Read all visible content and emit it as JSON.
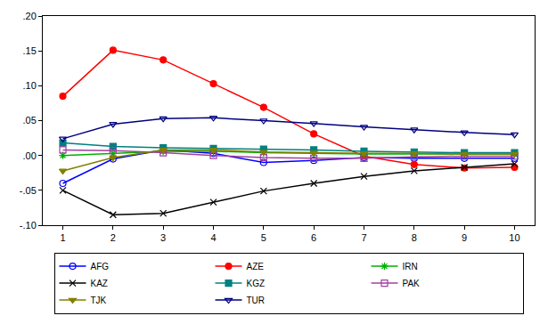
{
  "chart_data": {
    "type": "line",
    "x": [
      1,
      2,
      3,
      4,
      5,
      6,
      7,
      8,
      9,
      10
    ],
    "xlim": [
      0.6,
      10.4
    ],
    "xticks": [
      1,
      2,
      3,
      4,
      5,
      6,
      7,
      8,
      9,
      10
    ],
    "ylim": [
      -0.1,
      0.2
    ],
    "yticks": [
      {
        "value": -0.1,
        "label": "-.10"
      },
      {
        "value": -0.05,
        "label": "-.05"
      },
      {
        "value": 0.0,
        "label": ".00"
      },
      {
        "value": 0.05,
        "label": ".05"
      },
      {
        "value": 0.1,
        "label": ".10"
      },
      {
        "value": 0.15,
        "label": ".15"
      },
      {
        "value": 0.2,
        "label": ".20"
      }
    ],
    "grid": false,
    "legend": "bottom",
    "series": [
      {
        "name": "AFG",
        "color": "#0000ff",
        "marker": "circle-open",
        "values": [
          -0.04,
          -0.005,
          0.008,
          0.003,
          -0.01,
          -0.007,
          -0.003,
          -0.004,
          -0.004,
          -0.004
        ]
      },
      {
        "name": "AZE",
        "color": "#ff0000",
        "marker": "circle",
        "values": [
          0.085,
          0.151,
          0.137,
          0.103,
          0.069,
          0.031,
          -0.001,
          -0.013,
          -0.018,
          -0.017
        ]
      },
      {
        "name": "IRN",
        "color": "#00b000",
        "marker": "asterisk-open",
        "values": [
          0.0,
          0.003,
          0.006,
          0.006,
          0.004,
          0.003,
          0.002,
          0.002,
          0.002,
          0.002
        ]
      },
      {
        "name": "KAZ",
        "color": "#000000",
        "marker": "x-thin-open",
        "values": [
          -0.05,
          -0.085,
          -0.083,
          -0.067,
          -0.051,
          -0.04,
          -0.03,
          -0.022,
          -0.017,
          -0.012
        ]
      },
      {
        "name": "KGZ",
        "color": "#008080",
        "marker": "square",
        "values": [
          0.018,
          0.013,
          0.011,
          0.01,
          0.009,
          0.008,
          0.006,
          0.005,
          0.004,
          0.004
        ]
      },
      {
        "name": "PAK",
        "color": "#a040a0",
        "marker": "square-open",
        "values": [
          0.008,
          0.007,
          0.004,
          0.0,
          -0.003,
          -0.004,
          -0.004,
          -0.002,
          -0.001,
          -0.001
        ]
      },
      {
        "name": "TJK",
        "color": "#808000",
        "marker": "triangle-down",
        "values": [
          -0.022,
          -0.003,
          0.008,
          0.008,
          0.005,
          0.004,
          0.003,
          0.003,
          0.002,
          0.002
        ]
      },
      {
        "name": "TUR",
        "color": "#000080",
        "marker": "triangle-down-open",
        "values": [
          0.024,
          0.045,
          0.053,
          0.054,
          0.05,
          0.046,
          0.041,
          0.037,
          0.033,
          0.03
        ]
      }
    ]
  }
}
